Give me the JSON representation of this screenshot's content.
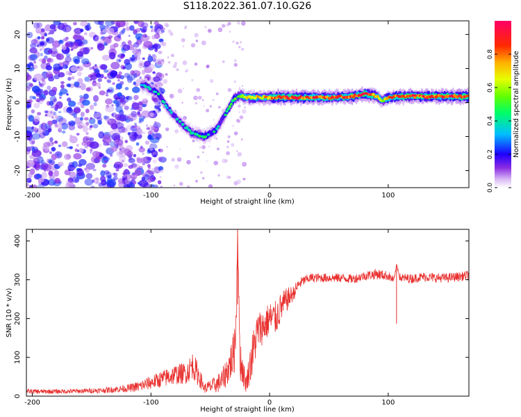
{
  "title": "S118.2022.361.07.10.G26",
  "chart_data": [
    {
      "type": "heatmap",
      "xlabel": "Height of straight line (km)",
      "ylabel": "Frequency (Hz)",
      "xlim": [
        -205,
        168
      ],
      "ylim": [
        -25,
        24
      ],
      "xticks": [
        "-200",
        "-100",
        "0",
        "100"
      ],
      "xtick_values": [
        -200,
        -100,
        0,
        100
      ],
      "yticks": [
        "-20",
        "-10",
        "0",
        "10",
        "20"
      ],
      "ytick_values": [
        -20,
        -10,
        0,
        10,
        20
      ],
      "grid": false,
      "colorbar": {
        "label": "Normalized spectral amplitude",
        "range": [
          0,
          1
        ],
        "ticks": [
          "0.0",
          "0.2",
          "0.4",
          "0.6",
          "0.8"
        ],
        "tick_values": [
          0.0,
          0.2,
          0.4,
          0.6,
          0.8
        ]
      },
      "ridge": {
        "x": [
          -105,
          -95,
          -85,
          -75,
          -65,
          -55,
          -45,
          -40,
          -35,
          -30,
          -25,
          -20,
          -10,
          0,
          10,
          30,
          50,
          70,
          80,
          90,
          95,
          100,
          110,
          130,
          150,
          168
        ],
        "y": [
          5,
          3,
          -2,
          -6,
          -9,
          -10,
          -8,
          -5,
          -2,
          1,
          2,
          1.5,
          1.5,
          1.5,
          1.5,
          1.5,
          1.5,
          1.8,
          2.5,
          2,
          0.5,
          1.5,
          1.8,
          1.8,
          1.8,
          1.8
        ],
        "amplitude": [
          0.35,
          0.4,
          0.35,
          0.35,
          0.4,
          0.45,
          0.4,
          0.35,
          0.45,
          0.5,
          0.6,
          0.65,
          0.7,
          0.75,
          0.9,
          0.85,
          0.8,
          0.85,
          0.9,
          0.7,
          0.6,
          0.8,
          0.85,
          0.85,
          0.85,
          0.9
        ]
      },
      "noise_region_x": [
        -205,
        -100
      ],
      "noise_amplitude": [
        0.05,
        0.25
      ]
    },
    {
      "type": "line",
      "xlabel": "Height of straight line (km)",
      "ylabel": "SNR (10 * v/v)",
      "xlim": [
        -205,
        168
      ],
      "ylim": [
        0,
        430
      ],
      "xticks": [
        "-200",
        "-100",
        "0",
        "100"
      ],
      "xtick_values": [
        -200,
        -100,
        0,
        100
      ],
      "yticks": [
        "0",
        "100",
        "200",
        "300",
        "400"
      ],
      "ytick_values": [
        0,
        100,
        200,
        300,
        400
      ],
      "grid": false,
      "series": [
        {
          "color": "#e8302e",
          "x": [
            -205,
            -180,
            -160,
            -140,
            -120,
            -110,
            -100,
            -90,
            -80,
            -70,
            -65,
            -60,
            -55,
            -50,
            -45,
            -40,
            -35,
            -30,
            -28,
            -27,
            -25,
            -20,
            -15,
            -10,
            -5,
            0,
            5,
            10,
            15,
            20,
            25,
            30,
            35,
            40,
            50,
            60,
            70,
            80,
            90,
            100,
            105,
            107,
            110,
            120,
            130,
            140,
            150,
            160,
            168
          ],
          "y": [
            12,
            12,
            13,
            15,
            20,
            25,
            35,
            45,
            55,
            60,
            80,
            55,
            20,
            25,
            30,
            40,
            70,
            110,
            210,
            430,
            100,
            30,
            100,
            170,
            180,
            200,
            200,
            230,
            250,
            265,
            290,
            300,
            305,
            305,
            305,
            305,
            302,
            310,
            315,
            310,
            298,
            340,
            305,
            303,
            308,
            305,
            305,
            308,
            312
          ],
          "noise": [
            6,
            6,
            6,
            7,
            10,
            14,
            18,
            22,
            26,
            28,
            35,
            30,
            12,
            18,
            22,
            30,
            40,
            60,
            80,
            0,
            60,
            20,
            60,
            50,
            45,
            45,
            45,
            40,
            30,
            20,
            15,
            12,
            12,
            12,
            12,
            12,
            12,
            12,
            14,
            12,
            10,
            0,
            12,
            12,
            12,
            12,
            12,
            12,
            12
          ]
        }
      ]
    }
  ]
}
